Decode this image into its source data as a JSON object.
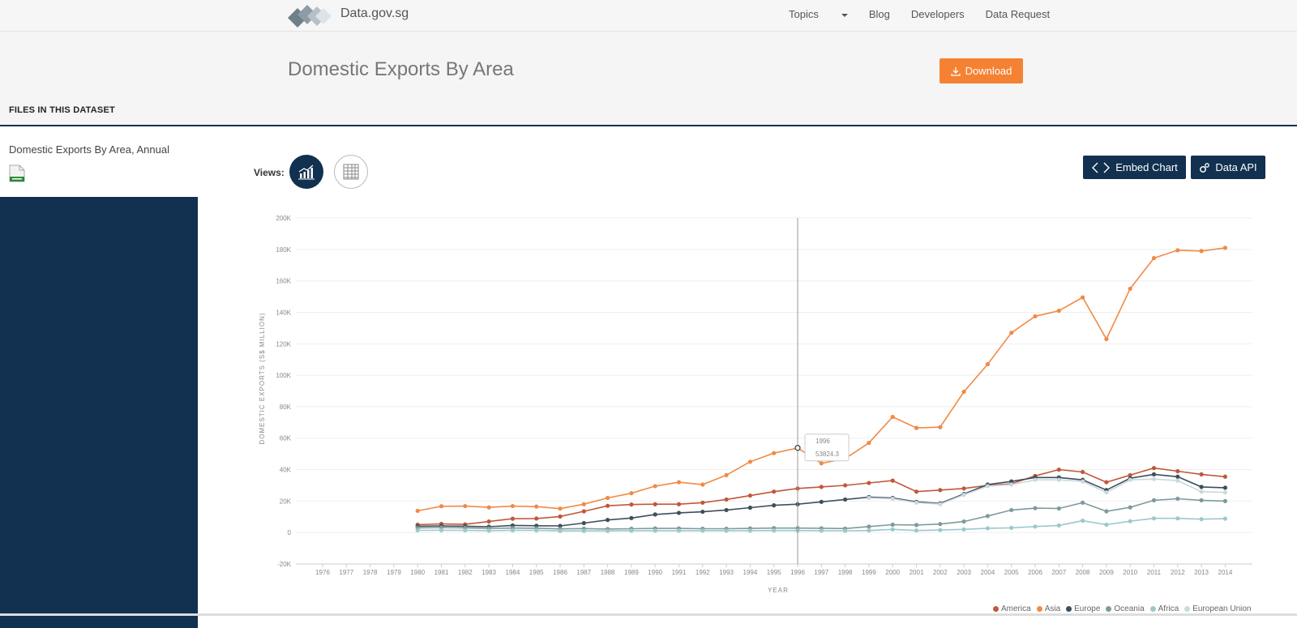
{
  "site": {
    "name": "Data.gov.sg"
  },
  "nav": {
    "items": [
      "Topics",
      "Blog",
      "Developers",
      "Data Request"
    ]
  },
  "page": {
    "title": "Domestic Exports By Area",
    "download_label": "Download"
  },
  "files": {
    "heading": "FILES IN THIS DATASET",
    "items": [
      {
        "name": "Domestic Exports By Area, Annual",
        "icon": "csv-file-icon"
      }
    ]
  },
  "views": {
    "label": "Views:",
    "options": [
      "chart-view-icon",
      "table-view-icon"
    ],
    "active": "chart"
  },
  "actions": {
    "embed_label": "Embed Chart",
    "api_label": "Data API"
  },
  "colors": {
    "accent": "#f58233",
    "navy": "#12304f"
  },
  "chart_data": {
    "type": "line",
    "xlabel": "YEAR",
    "ylabel": "DOMESTIC EXPORTS (S$ MILLION)",
    "ylim": [
      -20000,
      200000
    ],
    "y_ticks": [
      "-20K",
      "0",
      "20K",
      "40K",
      "60K",
      "80K",
      "100K",
      "120K",
      "140K",
      "160K",
      "180K",
      "200K"
    ],
    "x": [
      1976,
      1977,
      1978,
      1979,
      1980,
      1981,
      1982,
      1983,
      1984,
      1985,
      1986,
      1987,
      1988,
      1989,
      1990,
      1991,
      1992,
      1993,
      1994,
      1995,
      1996,
      1997,
      1998,
      1999,
      2000,
      2001,
      2002,
      2003,
      2004,
      2005,
      2006,
      2007,
      2008,
      2009,
      2010,
      2011,
      2012,
      2013,
      2014
    ],
    "grid": true,
    "legend_position": "bottom-right",
    "tooltip": {
      "x": 1996,
      "series": "Asia",
      "line1": "1996",
      "line2": "53824.3"
    },
    "series": [
      {
        "name": "America",
        "color": "#c0583a",
        "values": [
          null,
          null,
          null,
          null,
          5000,
          5500,
          5200,
          7000,
          8800,
          8900,
          10200,
          13500,
          17000,
          17800,
          18000,
          18000,
          19000,
          21000,
          23500,
          26000,
          28000,
          29000,
          30000,
          31500,
          33000,
          26000,
          27000,
          28000,
          30000,
          31000,
          36000,
          40000,
          38500,
          32000,
          36500,
          41000,
          39000,
          37000,
          35500
        ]
      },
      {
        "name": "Asia",
        "color": "#f08a46",
        "values": [
          null,
          null,
          null,
          null,
          13800,
          16700,
          16800,
          16000,
          16800,
          16500,
          15200,
          18000,
          22000,
          25000,
          29500,
          32000,
          30500,
          36500,
          45000,
          50500,
          53800,
          44000,
          47000,
          57000,
          73500,
          66500,
          67000,
          89500,
          107000,
          127000,
          137500,
          141000,
          149500,
          123000,
          155000,
          174500,
          179500,
          179000,
          181000
        ]
      },
      {
        "name": "Europe",
        "color": "#3d4f5a",
        "values": [
          null,
          null,
          null,
          null,
          4000,
          4200,
          4000,
          3700,
          4500,
          4300,
          4200,
          6000,
          8000,
          9200,
          11500,
          12500,
          13200,
          14300,
          15800,
          17300,
          18000,
          19500,
          21000,
          22500,
          22000,
          19500,
          18500,
          24500,
          30500,
          32500,
          35000,
          35000,
          33500,
          27000,
          34500,
          37000,
          35500,
          29000,
          28500
        ]
      },
      {
        "name": "Oceania",
        "color": "#7e9b9c",
        "values": [
          null,
          null,
          null,
          null,
          3000,
          3200,
          3000,
          2600,
          2800,
          2700,
          2300,
          2500,
          2200,
          2400,
          2600,
          2600,
          2400,
          2400,
          2600,
          2800,
          2800,
          2700,
          2500,
          3800,
          5000,
          4800,
          5400,
          7000,
          10500,
          14300,
          15500,
          15300,
          19000,
          13500,
          16000,
          20500,
          21500,
          20500,
          20000
        ]
      },
      {
        "name": "Africa",
        "color": "#9dc8cb",
        "values": [
          null,
          null,
          null,
          null,
          1400,
          1500,
          1400,
          1200,
          1400,
          1400,
          1000,
          1000,
          1000,
          1200,
          1200,
          1200,
          1200,
          1200,
          1200,
          1300,
          1300,
          1200,
          1100,
          1300,
          2000,
          1300,
          1600,
          2000,
          2700,
          3000,
          3800,
          4500,
          7500,
          5000,
          7200,
          9000,
          9000,
          8500,
          8800
        ]
      },
      {
        "name": "European Union",
        "color": "#c9d9de",
        "values": [
          null,
          null,
          null,
          null,
          null,
          null,
          null,
          null,
          null,
          null,
          null,
          null,
          null,
          null,
          null,
          null,
          null,
          null,
          null,
          null,
          null,
          null,
          null,
          22000,
          21500,
          19000,
          18000,
          24000,
          29500,
          30500,
          33500,
          33500,
          32500,
          25500,
          33500,
          34000,
          33000,
          26000,
          25500
        ]
      }
    ]
  }
}
